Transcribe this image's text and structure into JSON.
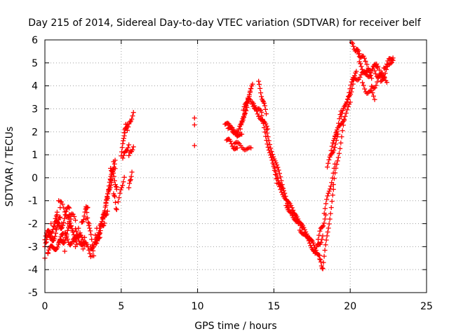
{
  "chart_data": {
    "type": "scatter",
    "title": "Day 215 of 2014, Sidereal Day-to-day VTEC variation (SDTVAR) for receiver belf",
    "xlabel": "GPS time / hours",
    "ylabel": "SDTVAR / TECUs",
    "xlim": [
      0,
      25
    ],
    "ylim": [
      -5,
      6
    ],
    "xticks": [
      "0",
      "5",
      "10",
      "15",
      "20",
      "25"
    ],
    "yticks": [
      "-5",
      "-4",
      "-3",
      "-2",
      "-1",
      "0",
      "1",
      "2",
      "3",
      "4",
      "5",
      "6"
    ],
    "grid": true,
    "marker": "plus",
    "color": "#ff0000",
    "series": [
      {
        "trace_points": [
          [
            0.0,
            -3.5
          ],
          [
            0.1,
            -2.8
          ],
          [
            0.2,
            -3.3
          ],
          [
            0.3,
            -2.5
          ],
          [
            0.4,
            -2.0
          ],
          [
            0.5,
            -2.6
          ],
          [
            0.6,
            -3.1
          ],
          [
            0.7,
            -2.2
          ],
          [
            0.8,
            -1.5
          ],
          [
            0.9,
            -1.0
          ],
          [
            1.0,
            -1.3
          ],
          [
            1.1,
            -2.0
          ],
          [
            1.2,
            -2.7
          ],
          [
            1.3,
            -3.2
          ],
          [
            1.4,
            -2.6
          ],
          [
            1.5,
            -2.0
          ],
          [
            1.6,
            -1.6
          ],
          [
            1.7,
            -1.8
          ],
          [
            1.8,
            -2.3
          ],
          [
            1.9,
            -2.8
          ],
          [
            2.0,
            -3.0
          ],
          [
            2.1,
            -2.5
          ],
          [
            2.2,
            -2.2
          ],
          [
            2.3,
            -2.4
          ],
          [
            2.4,
            -2.8
          ],
          [
            2.5,
            -3.1
          ],
          [
            2.6,
            -2.6
          ],
          [
            2.7,
            -1.8
          ],
          [
            2.8,
            -1.3
          ],
          [
            2.9,
            -2.0
          ],
          [
            3.0,
            -3.0
          ],
          [
            3.1,
            -3.4
          ],
          [
            3.2,
            -3.0
          ],
          [
            3.3,
            -2.5
          ],
          [
            3.4,
            -2.2
          ],
          [
            3.5,
            -2.6
          ],
          [
            3.6,
            -2.4
          ],
          [
            3.7,
            -2.0
          ],
          [
            3.8,
            -1.8
          ],
          [
            3.9,
            -1.5
          ],
          [
            4.0,
            -1.2
          ],
          [
            4.1,
            -0.9
          ],
          [
            4.2,
            -0.5
          ],
          [
            4.3,
            -0.1
          ],
          [
            4.4,
            0.3
          ],
          [
            4.5,
            0.7
          ],
          [
            4.6,
            0.4
          ],
          [
            4.7,
            -0.5
          ]
        ],
        "segments": [
          {
            "x0": 0.0,
            "x1": 1.0,
            "y0": -3.0,
            "y1": -2.0,
            "wave": 0.3,
            "n": 22
          },
          {
            "x0": 0.0,
            "x1": 0.8,
            "y0": -2.7,
            "y1": -1.8,
            "wave": 0.2,
            "n": 16
          },
          {
            "x0": 0.2,
            "x1": 1.2,
            "y0": -3.3,
            "y1": -2.6,
            "wave": 0.2,
            "n": 20
          },
          {
            "x0": 0.6,
            "x1": 1.6,
            "y0": -2.3,
            "y1": -1.5,
            "wave": 0.3,
            "n": 20
          },
          {
            "x0": 0.9,
            "x1": 1.7,
            "y0": -3.0,
            "y1": -2.2,
            "wave": 0.2,
            "n": 16
          },
          {
            "x0": 1.0,
            "x1": 2.0,
            "y0": -1.2,
            "y1": -1.9,
            "wave": 0.2,
            "n": 14
          },
          {
            "x0": 1.3,
            "x1": 2.1,
            "y0": -2.6,
            "y1": -2.9,
            "wave": 0.2,
            "n": 14
          },
          {
            "x0": 1.6,
            "x1": 2.6,
            "y0": -2.1,
            "y1": -2.9,
            "wave": 0.2,
            "n": 18
          },
          {
            "x0": 2.0,
            "x1": 3.0,
            "y0": -2.4,
            "y1": -3.3,
            "wave": 0.2,
            "n": 18
          },
          {
            "x0": 2.4,
            "x1": 2.8,
            "y0": -2.0,
            "y1": -1.2,
            "wave": 0.1,
            "n": 10
          },
          {
            "x0": 2.7,
            "x1": 3.2,
            "y0": -1.3,
            "y1": -3.3,
            "wave": 0.1,
            "n": 12
          },
          {
            "x0": 3.0,
            "x1": 3.6,
            "y0": -3.1,
            "y1": -2.5,
            "wave": 0.1,
            "n": 12
          },
          {
            "x0": 3.3,
            "x1": 3.9,
            "y0": -2.8,
            "y1": -1.8,
            "wave": 0.2,
            "n": 14
          },
          {
            "x0": 3.5,
            "x1": 4.1,
            "y0": -2.4,
            "y1": -1.3,
            "wave": 0.2,
            "n": 14
          },
          {
            "x0": 3.8,
            "x1": 4.4,
            "y0": -1.7,
            "y1": 0.0,
            "wave": 0.1,
            "n": 16
          },
          {
            "x0": 4.0,
            "x1": 4.6,
            "y0": -1.0,
            "y1": 0.8,
            "wave": 0.1,
            "n": 16
          },
          {
            "x0": 4.3,
            "x1": 4.7,
            "y0": 0.5,
            "y1": -0.4,
            "wave": 0.1,
            "n": 10
          },
          {
            "x0": 4.5,
            "x1": 4.7,
            "y0": -0.6,
            "y1": -1.4,
            "wave": 0.1,
            "n": 6
          },
          {
            "x0": 4.8,
            "x1": 5.2,
            "y0": -1.0,
            "y1": 0.0,
            "wave": 0.05,
            "n": 8
          },
          {
            "x0": 5.0,
            "x1": 5.3,
            "y0": 1.0,
            "y1": 2.3,
            "wave": 0.05,
            "n": 10
          },
          {
            "x0": 5.1,
            "x1": 5.5,
            "y0": 0.9,
            "y1": 1.4,
            "wave": 0.05,
            "n": 8
          },
          {
            "x0": 5.2,
            "x1": 5.4,
            "y0": 2.0,
            "y1": 2.3,
            "wave": 0.05,
            "n": 6
          },
          {
            "x0": 5.4,
            "x1": 5.8,
            "y0": 2.1,
            "y1": 2.8,
            "wave": 0.05,
            "n": 8
          },
          {
            "x0": 5.5,
            "x1": 5.8,
            "y0": 1.0,
            "y1": 1.3,
            "wave": 0.05,
            "n": 6
          },
          {
            "x0": 5.5,
            "x1": 5.7,
            "y0": -0.4,
            "y1": 0.2,
            "wave": 0.05,
            "n": 6
          },
          {
            "x0": 9.8,
            "x1": 9.8,
            "y0": 2.6,
            "y1": 2.6,
            "wave": 0,
            "n": 1
          },
          {
            "x0": 9.8,
            "x1": 9.8,
            "y0": 2.3,
            "y1": 2.3,
            "wave": 0,
            "n": 1
          },
          {
            "x0": 9.8,
            "x1": 9.8,
            "y0": 1.4,
            "y1": 1.4,
            "wave": 0,
            "n": 1
          },
          {
            "x0": 11.8,
            "x1": 12.6,
            "y0": 2.4,
            "y1": 1.9,
            "wave": 0.1,
            "n": 14
          },
          {
            "x0": 11.9,
            "x1": 12.6,
            "y0": 1.7,
            "y1": 1.2,
            "wave": 0.1,
            "n": 12
          },
          {
            "x0": 12.0,
            "x1": 12.9,
            "y0": 2.2,
            "y1": 1.8,
            "wave": 0.1,
            "n": 14
          },
          {
            "x0": 12.4,
            "x1": 13.5,
            "y0": 1.5,
            "y1": 1.2,
            "wave": 0.1,
            "n": 14
          },
          {
            "x0": 12.6,
            "x1": 13.3,
            "y0": 1.8,
            "y1": 3.3,
            "wave": 0.1,
            "n": 14
          },
          {
            "x0": 12.8,
            "x1": 13.5,
            "y0": 2.1,
            "y1": 3.8,
            "wave": 0.1,
            "n": 14
          },
          {
            "x0": 13.0,
            "x1": 13.6,
            "y0": 2.9,
            "y1": 4.0,
            "wave": 0.1,
            "n": 12
          },
          {
            "x0": 13.3,
            "x1": 14.2,
            "y0": 3.4,
            "y1": 2.8,
            "wave": 0.1,
            "n": 14
          },
          {
            "x0": 13.6,
            "x1": 14.6,
            "y0": 3.2,
            "y1": 2.1,
            "wave": 0.1,
            "n": 16
          },
          {
            "x0": 14.0,
            "x1": 14.5,
            "y0": 4.1,
            "y1": 2.8,
            "wave": 0.1,
            "n": 12
          },
          {
            "x0": 14.2,
            "x1": 15.2,
            "y0": 2.6,
            "y1": -0.2,
            "wave": 0.1,
            "n": 20
          },
          {
            "x0": 14.5,
            "x1": 15.6,
            "y0": 2.0,
            "y1": -0.4,
            "wave": 0.1,
            "n": 20
          },
          {
            "x0": 15.0,
            "x1": 16.0,
            "y0": 0.5,
            "y1": -1.3,
            "wave": 0.1,
            "n": 18
          },
          {
            "x0": 15.3,
            "x1": 16.6,
            "y0": -0.3,
            "y1": -1.9,
            "wave": 0.1,
            "n": 20
          },
          {
            "x0": 15.8,
            "x1": 16.9,
            "y0": -1.2,
            "y1": -2.1,
            "wave": 0.1,
            "n": 18
          },
          {
            "x0": 16.2,
            "x1": 17.4,
            "y0": -1.6,
            "y1": -2.6,
            "wave": 0.1,
            "n": 20
          },
          {
            "x0": 16.7,
            "x1": 17.7,
            "y0": -2.2,
            "y1": -3.2,
            "wave": 0.1,
            "n": 18
          },
          {
            "x0": 17.2,
            "x1": 18.0,
            "y0": -2.5,
            "y1": -3.4,
            "wave": 0.1,
            "n": 16
          },
          {
            "x0": 17.7,
            "x1": 18.2,
            "y0": -3.2,
            "y1": -2.6,
            "wave": 0.1,
            "n": 10
          },
          {
            "x0": 17.9,
            "x1": 18.4,
            "y0": -2.6,
            "y1": -1.7,
            "wave": 0.1,
            "n": 10
          },
          {
            "x0": 18.0,
            "x1": 18.2,
            "y0": -3.5,
            "y1": -4.0,
            "wave": 0.05,
            "n": 6
          },
          {
            "x0": 18.2,
            "x1": 18.9,
            "y0": -3.9,
            "y1": -0.6,
            "wave": 0.1,
            "n": 16
          },
          {
            "x0": 18.3,
            "x1": 19.0,
            "y0": -1.5,
            "y1": 0.5,
            "wave": 0.1,
            "n": 14
          },
          {
            "x0": 18.5,
            "x1": 19.2,
            "y0": 0.5,
            "y1": 1.8,
            "wave": 0.1,
            "n": 14
          },
          {
            "x0": 18.7,
            "x1": 19.4,
            "y0": 1.0,
            "y1": 2.8,
            "wave": 0.1,
            "n": 14
          },
          {
            "x0": 18.9,
            "x1": 19.6,
            "y0": -0.3,
            "y1": 2.4,
            "wave": 0.1,
            "n": 14
          },
          {
            "x0": 19.0,
            "x1": 20.0,
            "y0": 1.8,
            "y1": 3.2,
            "wave": 0.1,
            "n": 16
          },
          {
            "x0": 19.4,
            "x1": 20.2,
            "y0": 2.6,
            "y1": 4.3,
            "wave": 0.1,
            "n": 16
          },
          {
            "x0": 19.8,
            "x1": 20.4,
            "y0": 3.2,
            "y1": 4.6,
            "wave": 0.1,
            "n": 12
          },
          {
            "x0": 20.1,
            "x1": 20.6,
            "y0": 5.8,
            "y1": 5.4,
            "wave": 0.1,
            "n": 10
          },
          {
            "x0": 20.4,
            "x1": 21.0,
            "y0": 5.5,
            "y1": 5.1,
            "wave": 0.1,
            "n": 10
          },
          {
            "x0": 20.6,
            "x1": 21.4,
            "y0": 4.9,
            "y1": 4.4,
            "wave": 0.15,
            "n": 14
          },
          {
            "x0": 20.2,
            "x1": 21.0,
            "y0": 4.2,
            "y1": 4.6,
            "wave": 0.1,
            "n": 12
          },
          {
            "x0": 20.8,
            "x1": 21.6,
            "y0": 4.0,
            "y1": 3.5,
            "wave": 0.15,
            "n": 12
          },
          {
            "x0": 21.0,
            "x1": 21.8,
            "y0": 4.4,
            "y1": 4.9,
            "wave": 0.15,
            "n": 12
          },
          {
            "x0": 21.4,
            "x1": 22.2,
            "y0": 3.9,
            "y1": 4.5,
            "wave": 0.15,
            "n": 12
          },
          {
            "x0": 21.6,
            "x1": 22.4,
            "y0": 4.6,
            "y1": 4.3,
            "wave": 0.15,
            "n": 12
          },
          {
            "x0": 22.0,
            "x1": 22.8,
            "y0": 4.2,
            "y1": 5.2,
            "wave": 0.1,
            "n": 12
          },
          {
            "x0": 22.2,
            "x1": 22.8,
            "y0": 4.8,
            "y1": 5.3,
            "wave": 0.1,
            "n": 10
          },
          {
            "x0": 21.0,
            "x1": 22.0,
            "y0": 4.9,
            "y1": 4.7,
            "wave": 0.2,
            "n": 12
          }
        ]
      }
    ]
  }
}
